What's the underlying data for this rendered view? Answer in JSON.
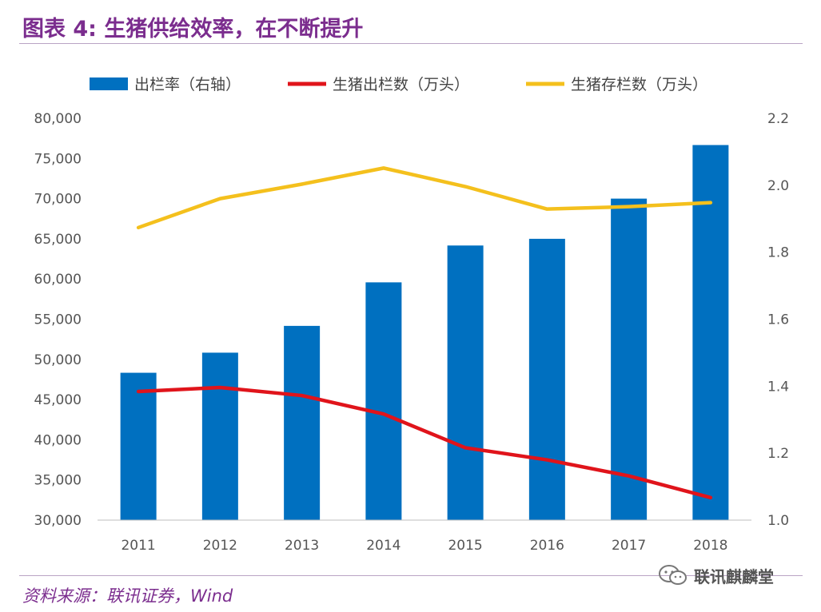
{
  "header": {
    "title": "图表 4: 生猪供给效率，在不断提升"
  },
  "footer": {
    "source": "资料来源：联讯证券，Wind",
    "watermark": "联讯麒麟堂"
  },
  "chart_data": {
    "type": "bar+line",
    "categories": [
      "2011",
      "2012",
      "2013",
      "2014",
      "2015",
      "2016",
      "2017",
      "2018"
    ],
    "series": [
      {
        "name": "出栏率（右轴）",
        "kind": "bar",
        "axis": "right",
        "color": "#0070c0",
        "values": [
          1.44,
          1.5,
          1.58,
          1.71,
          1.82,
          1.84,
          1.96,
          2.12
        ]
      },
      {
        "name": "生猪出栏数（万头）",
        "kind": "line",
        "axis": "left",
        "color": "#e0141b",
        "values": [
          46000,
          46500,
          45500,
          43200,
          39000,
          37500,
          35500,
          32800
        ]
      },
      {
        "name": "生猪存栏数（万头）",
        "kind": "line",
        "axis": "left",
        "color": "#f4c01d",
        "values": [
          66400,
          70000,
          71800,
          73800,
          71500,
          68700,
          69000,
          69500
        ]
      }
    ],
    "y_left": {
      "min": 30000,
      "max": 80000,
      "step": 5000,
      "ticks": [
        "30,000",
        "35,000",
        "40,000",
        "45,000",
        "50,000",
        "55,000",
        "60,000",
        "65,000",
        "70,000",
        "75,000",
        "80,000"
      ]
    },
    "y_right": {
      "min": 1.0,
      "max": 2.2,
      "step": 0.2,
      "ticks": [
        "1.0",
        "1.2",
        "1.4",
        "1.6",
        "1.8",
        "2.0",
        "2.2"
      ]
    },
    "grid": false,
    "legend_position": "top"
  }
}
